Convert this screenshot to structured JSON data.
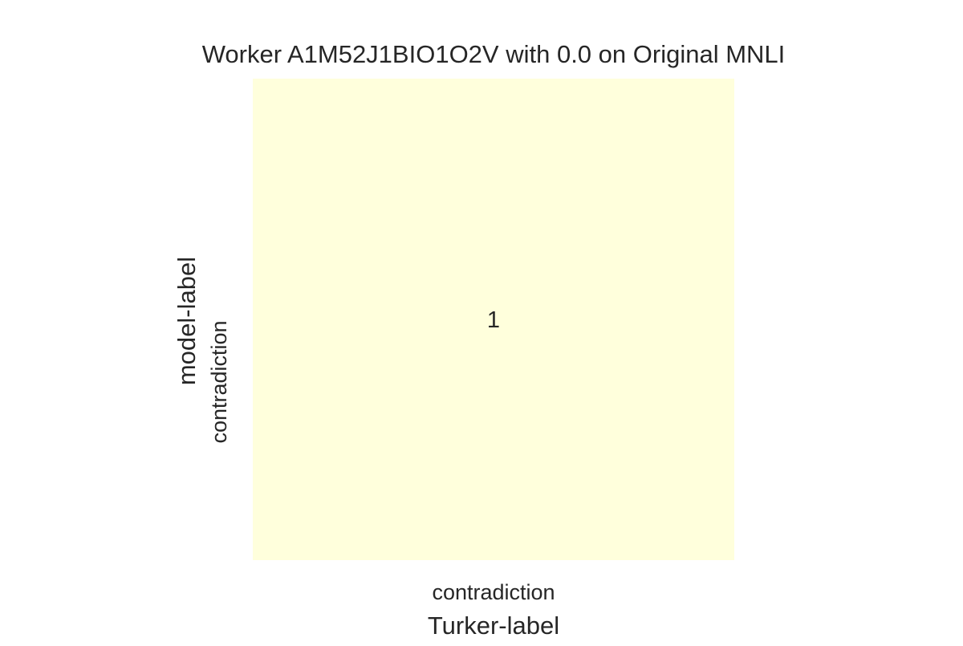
{
  "chart_data": {
    "type": "heatmap",
    "title": "Worker A1M52J1BIO1O2V with 0.0 on Original MNLI",
    "xlabel": "Turker-label",
    "ylabel": "model-label",
    "x_categories": [
      "contradiction"
    ],
    "y_categories": [
      "contradiction"
    ],
    "values": [
      [
        1
      ]
    ],
    "cell_color": "#ffffdc",
    "text_color": "#262626"
  }
}
